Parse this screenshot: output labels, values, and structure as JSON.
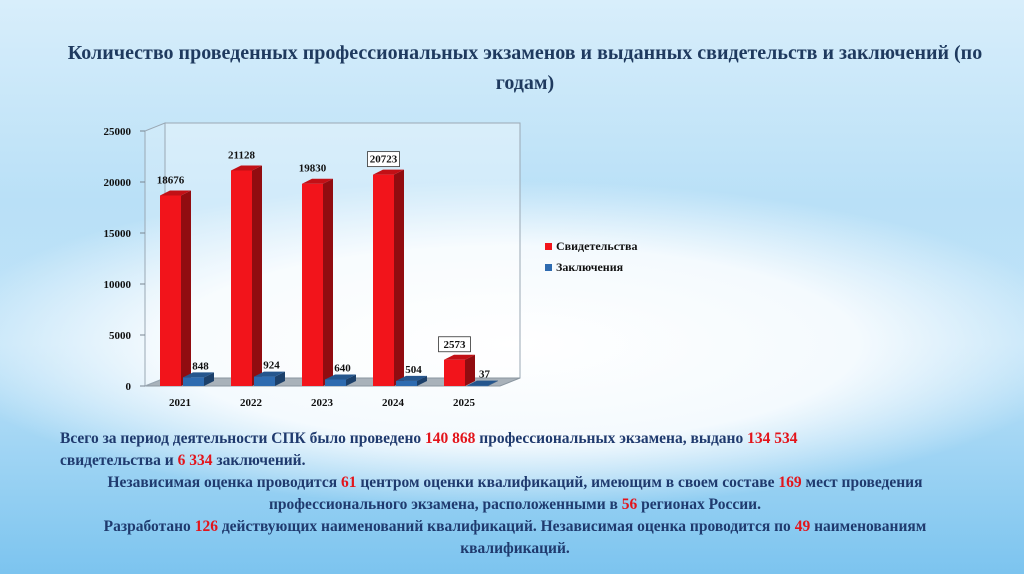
{
  "title": "Количество проведенных профессиональных экзаменов и выданных свидетельств и заключений (по годам)",
  "chart_data": {
    "type": "bar",
    "categories": [
      "2021",
      "2022",
      "2023",
      "2024",
      "2025"
    ],
    "series": [
      {
        "name": "Свидетельства",
        "values": [
          18676,
          21128,
          19830,
          20723,
          2573
        ],
        "color": "#f2141b"
      },
      {
        "name": "Заключения",
        "values": [
          848,
          924,
          640,
          504,
          37
        ],
        "color": "#2e6bb0"
      }
    ],
    "yticks": [
      "0",
      "5000",
      "10000",
      "15000",
      "20000",
      "25000"
    ],
    "ylim": [
      0,
      25000
    ],
    "legend_position": "right",
    "grid": false
  },
  "info": {
    "p1": {
      "t1": "Всего за период деятельности СПК было проведено ",
      "n1": "140 868",
      "t2": " профессиональных экзамена, выдано ",
      "n2": "134 534",
      "t3": " свидетельства и ",
      "n3": "6 334",
      "t4": " заключений."
    },
    "p2": {
      "t1": "Независимая оценка проводится ",
      "n1": "61",
      "t2": " центром оценки квалификаций, имеющим в своем составе ",
      "n2": "169",
      "t3": " мест проведения профессионального экзамена, расположенными в ",
      "n3": "56",
      "t4": " регионах России."
    },
    "p3": {
      "t1": "Разработано ",
      "n1": "126",
      "t2": " действующих наименований квалификаций. Независимая оценка проводится по ",
      "n2": "49",
      "t3": " наименованиям квалификаций."
    }
  }
}
